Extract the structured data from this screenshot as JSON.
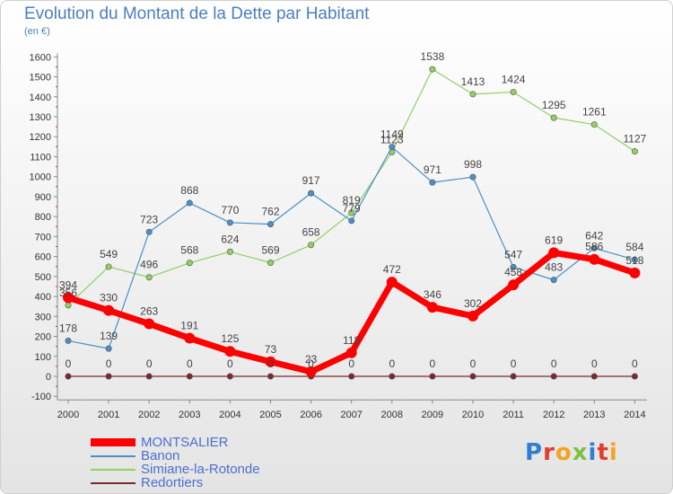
{
  "chart_data": {
    "type": "line",
    "title": "Evolution du Montant de la Dette par Habitant",
    "unit_label": "(en €)",
    "x": [
      "2000",
      "2001",
      "2002",
      "2003",
      "2004",
      "2005",
      "2006",
      "2007",
      "2008",
      "2009",
      "2010",
      "2011",
      "2012",
      "2013",
      "2014"
    ],
    "ylim": [
      -100,
      1600
    ],
    "yticks": [
      -100,
      0,
      100,
      200,
      300,
      400,
      500,
      600,
      700,
      800,
      900,
      1000,
      1100,
      1200,
      1300,
      1400,
      1500,
      1600
    ],
    "grid": false,
    "legend_position": "bottom-left",
    "series": [
      {
        "name": "MONTSALIER",
        "color": "#ff0000",
        "values": [
          394,
          330,
          263,
          191,
          125,
          73,
          23,
          118,
          472,
          346,
          302,
          458,
          619,
          586,
          518
        ]
      },
      {
        "name": "Banon",
        "color": "#4a90c8",
        "values": [
          178,
          139,
          723,
          868,
          770,
          762,
          917,
          779,
          1149,
          971,
          998,
          547,
          483,
          642,
          584
        ]
      },
      {
        "name": "Simiane-la-Rotonde",
        "color": "#8fd060",
        "values": [
          356,
          549,
          496,
          568,
          624,
          569,
          658,
          819,
          1123,
          1538,
          1413,
          1424,
          1295,
          1261,
          1127
        ]
      },
      {
        "name": "Redortiers",
        "color": "#7a2a2a",
        "values": [
          0,
          0,
          0,
          0,
          0,
          0,
          0,
          0,
          0,
          0,
          0,
          0,
          0,
          0,
          0
        ]
      }
    ]
  },
  "logo": {
    "letters": [
      {
        "ch": "P",
        "color": "#2f7fd0"
      },
      {
        "ch": "r",
        "color": "#e23c2c"
      },
      {
        "ch": "o",
        "color": "#f2a51d"
      },
      {
        "ch": "x",
        "color": "#7cc242"
      },
      {
        "ch": "i",
        "color": "#2f7fd0"
      },
      {
        "ch": "t",
        "color": "#e23c2c"
      },
      {
        "ch": "i",
        "color": "#f2a51d"
      }
    ]
  }
}
